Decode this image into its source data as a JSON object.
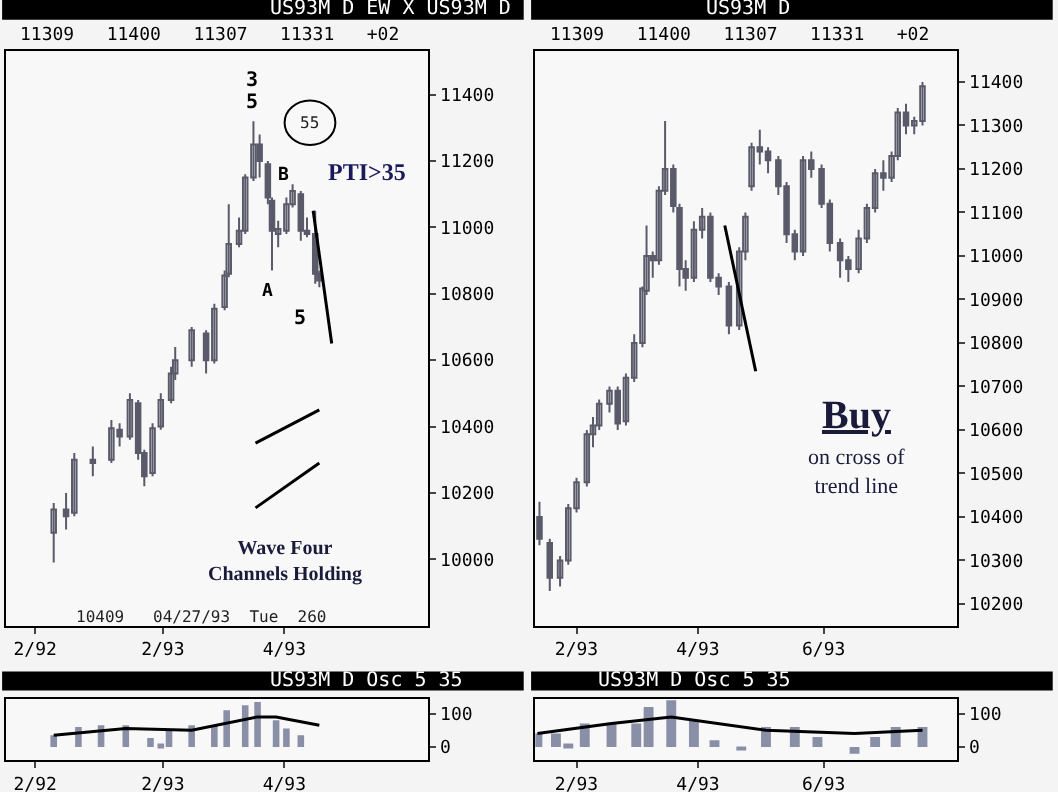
{
  "chart_data": [
    {
      "type": "candlestick",
      "title": "US93M D EW X US93M D",
      "subtitle": "11309   11400   11307   11331   +02",
      "color": "#5a5a6a",
      "x": [
        "1992-12-10",
        "1992-12-16",
        "1992-12-20",
        "1992-12-29",
        "1993-01-07",
        "1993-01-11",
        "1993-01-16",
        "1993-01-20",
        "1993-01-23",
        "1993-01-27",
        "1993-01-31",
        "1993-02-05",
        "1993-02-07",
        "1993-02-15",
        "1993-02-22",
        "1993-02-26",
        "1993-03-03",
        "1993-03-05",
        "1993-03-10",
        "1993-03-13",
        "1993-03-17",
        "1993-03-20",
        "1993-03-24",
        "1993-03-26",
        "1993-03-29",
        "1993-04-02",
        "1993-04-05",
        "1993-04-09",
        "1993-04-12",
        "1993-04-16",
        "1993-04-18"
      ],
      "ohlc": [
        [
          10080,
          10170,
          9990,
          10150
        ],
        [
          10150,
          10200,
          10090,
          10130
        ],
        [
          10140,
          10320,
          10130,
          10300
        ],
        [
          10300,
          10340,
          10250,
          10290
        ],
        [
          10300,
          10420,
          10290,
          10395
        ],
        [
          10390,
          10410,
          10340,
          10370
        ],
        [
          10370,
          10500,
          10360,
          10480
        ],
        [
          10470,
          10480,
          10300,
          10320
        ],
        [
          10320,
          10330,
          10220,
          10250
        ],
        [
          10260,
          10410,
          10250,
          10395
        ],
        [
          10400,
          10500,
          10390,
          10480
        ],
        [
          10480,
          10580,
          10470,
          10560
        ],
        [
          10560,
          10640,
          10540,
          10600
        ],
        [
          10600,
          10700,
          10580,
          10690
        ],
        [
          10680,
          10690,
          10560,
          10600
        ],
        [
          10600,
          10770,
          10590,
          10755
        ],
        [
          10760,
          10870,
          10750,
          10855
        ],
        [
          10860,
          11070,
          10850,
          10950
        ],
        [
          10950,
          11030,
          10940,
          10990
        ],
        [
          10990,
          11160,
          10980,
          11150
        ],
        [
          11150,
          11320,
          11140,
          11250
        ],
        [
          11250,
          11280,
          11150,
          11200
        ],
        [
          11190,
          11200,
          11070,
          11090
        ],
        [
          11080,
          11090,
          10870,
          10990
        ],
        [
          10980,
          11020,
          10940,
          10995
        ],
        [
          10990,
          11090,
          10980,
          11070
        ],
        [
          11070,
          11130,
          11060,
          11110
        ],
        [
          11100,
          11110,
          10960,
          10990
        ],
        [
          10990,
          11030,
          10970,
          10980
        ],
        [
          10980,
          11050,
          10830,
          10860
        ],
        [
          10860,
          10870,
          10820,
          10840
        ]
      ],
      "series": [
        {
          "type": "line",
          "color": "#000000",
          "x": [
            "1993-04-15",
            "1993-04-24"
          ],
          "values": [
            11050,
            10650
          ]
        },
        {
          "type": "line",
          "color": "#000000",
          "x": [
            "1993-03-18",
            "1993-04-18"
          ],
          "values": [
            10350,
            10450
          ]
        },
        {
          "type": "line",
          "color": "#000000",
          "x": [
            "1993-03-18",
            "1993-04-18"
          ],
          "values": [
            10155,
            10290
          ]
        }
      ],
      "xlim": [
        "1992-11-17",
        "1993-06-10"
      ],
      "xticks": [
        {
          "value": "1992-12-01",
          "label": "2/92"
        },
        {
          "value": "1993-02-01",
          "label": "2/93"
        },
        {
          "value": "1993-04-01",
          "label": "4/93"
        }
      ],
      "ylim": [
        9800,
        11530
      ],
      "yticks": [
        10000,
        10200,
        10400,
        10600,
        10800,
        11000,
        11200,
        11400
      ],
      "annotations": [
        "3",
        "5",
        "B",
        "A",
        "5",
        "55",
        "PTI>35",
        "Wave Four\nChannels Holding",
        "10409   04/27/93  Tue  260"
      ]
    },
    {
      "type": "candlestick",
      "title": "US93M D",
      "subtitle": "11309   11400   11307   11331   +02",
      "color": "#5a5a6a",
      "x": [
        "1993-01-14",
        "1993-01-19",
        "1993-01-24",
        "1993-01-28",
        "1993-02-01",
        "1993-02-06",
        "1993-02-09",
        "1993-02-12",
        "1993-02-17",
        "1993-02-21",
        "1993-02-25",
        "1993-03-01",
        "1993-03-05",
        "1993-03-07",
        "1993-03-10",
        "1993-03-13",
        "1993-03-16",
        "1993-03-20",
        "1993-03-23",
        "1993-03-26",
        "1993-03-30",
        "1993-04-03",
        "1993-04-07",
        "1993-04-11",
        "1993-04-16",
        "1993-04-21",
        "1993-04-24",
        "1993-04-27",
        "1993-05-01",
        "1993-05-05",
        "1993-05-10",
        "1993-05-14",
        "1993-05-18",
        "1993-05-22",
        "1993-05-26",
        "1993-05-31",
        "1993-06-04",
        "1993-06-09",
        "1993-06-13",
        "1993-06-18",
        "1993-06-22",
        "1993-06-26",
        "1993-06-30",
        "1993-07-04",
        "1993-07-07",
        "1993-07-11",
        "1993-07-15",
        "1993-07-19"
      ],
      "ohlc": [
        [
          10400,
          10435,
          10335,
          10350
        ],
        [
          10340,
          10350,
          10230,
          10260
        ],
        [
          10260,
          10310,
          10240,
          10300
        ],
        [
          10300,
          10430,
          10290,
          10420
        ],
        [
          10420,
          10490,
          10410,
          10480
        ],
        [
          10480,
          10600,
          10470,
          10590
        ],
        [
          10590,
          10630,
          10560,
          10610
        ],
        [
          10610,
          10670,
          10600,
          10660
        ],
        [
          10660,
          10700,
          10640,
          10690
        ],
        [
          10690,
          10700,
          10600,
          10615
        ],
        [
          10620,
          10730,
          10610,
          10720
        ],
        [
          10720,
          10820,
          10710,
          10800
        ],
        [
          10800,
          10930,
          10790,
          10925
        ],
        [
          10920,
          11070,
          10910,
          11000
        ],
        [
          11000,
          11010,
          10950,
          10990
        ],
        [
          10990,
          11160,
          10980,
          11150
        ],
        [
          11150,
          11310,
          11140,
          11200
        ],
        [
          11200,
          11210,
          11100,
          11115
        ],
        [
          11110,
          11120,
          10930,
          10970
        ],
        [
          10970,
          10990,
          10920,
          10950
        ],
        [
          10950,
          11080,
          10940,
          11060
        ],
        [
          11060,
          11110,
          11040,
          11090
        ],
        [
          11090,
          11100,
          10940,
          10950
        ],
        [
          10950,
          10960,
          10910,
          10930
        ],
        [
          10930,
          10940,
          10820,
          10840
        ],
        [
          10840,
          11020,
          10830,
          11010
        ],
        [
          11010,
          11100,
          10990,
          11090
        ],
        [
          11160,
          11260,
          11150,
          11250
        ],
        [
          11250,
          11290,
          11210,
          11240
        ],
        [
          11240,
          11250,
          11190,
          11220
        ],
        [
          11220,
          11230,
          11140,
          11160
        ],
        [
          11160,
          11170,
          11030,
          11050
        ],
        [
          11050,
          11060,
          10990,
          11010
        ],
        [
          11010,
          11230,
          11000,
          11220
        ],
        [
          11220,
          11240,
          11180,
          11200
        ],
        [
          11200,
          11210,
          11110,
          11120
        ],
        [
          11120,
          11130,
          11010,
          11030
        ],
        [
          11030,
          11040,
          10950,
          10990
        ],
        [
          10990,
          11000,
          10940,
          10970
        ],
        [
          10970,
          11060,
          10960,
          11040
        ],
        [
          11040,
          11120,
          11030,
          11110
        ],
        [
          11110,
          11200,
          11100,
          11190
        ],
        [
          11190,
          11220,
          11150,
          11180
        ],
        [
          11180,
          11240,
          11170,
          11230
        ],
        [
          11230,
          11340,
          11220,
          11330
        ],
        [
          11330,
          11350,
          11280,
          11300
        ],
        [
          11300,
          11320,
          11280,
          11310
        ],
        [
          11310,
          11400,
          11300,
          11390
        ]
      ],
      "series": [
        {
          "type": "line",
          "color": "#000000",
          "x": [
            "1993-04-14",
            "1993-04-29"
          ],
          "values": [
            11070,
            10735
          ]
        }
      ],
      "xlim": [
        "1993-01-12",
        "1993-08-05"
      ],
      "xticks": [
        {
          "value": "1993-02-01",
          "label": "2/93"
        },
        {
          "value": "1993-04-01",
          "label": "4/93"
        },
        {
          "value": "1993-06-01",
          "label": "6/93"
        }
      ],
      "ylim": [
        10150,
        11470
      ],
      "yticks": [
        10200,
        10300,
        10400,
        10500,
        10600,
        10700,
        10800,
        10900,
        11000,
        11100,
        11200,
        11300,
        11400
      ],
      "annotations": [
        "Buy",
        "on cross of\ntrend line"
      ]
    },
    {
      "type": "bar",
      "title": "US93M D Osc 5 35",
      "series": [
        {
          "type": "bar",
          "color": "#8a8fa8",
          "x": [
            "1992-12-10",
            "1992-12-22",
            "1993-01-02",
            "1993-01-14",
            "1993-01-26",
            "1993-01-31",
            "1993-02-04",
            "1993-02-15",
            "1993-02-26",
            "1993-03-04",
            "1993-03-13",
            "1993-03-19",
            "1993-03-28",
            "1993-04-02",
            "1993-04-09",
            "1993-04-15"
          ],
          "values": [
            35,
            60,
            65,
            65,
            27,
            10,
            50,
            65,
            65,
            110,
            125,
            135,
            80,
            55,
            35,
            0
          ]
        },
        {
          "type": "line",
          "color": "#000000",
          "x": [
            "1992-12-10",
            "1993-01-14",
            "1993-02-15",
            "1993-03-19",
            "1993-03-28",
            "1993-04-18"
          ],
          "values": [
            35,
            55,
            50,
            90,
            90,
            65
          ]
        }
      ],
      "xlim": [
        "1992-11-17",
        "1993-06-10"
      ],
      "xticks": [
        {
          "value": "1992-12-01",
          "label": "2/92"
        },
        {
          "value": "1993-02-01",
          "label": "2/93"
        },
        {
          "value": "1993-04-01",
          "label": "4/93"
        }
      ],
      "ylim": [
        -40,
        145
      ],
      "yticks": [
        0,
        100
      ]
    },
    {
      "type": "bar",
      "title": "US93M D Osc 5 35",
      "series": [
        {
          "type": "bar",
          "color": "#8a8fa8",
          "x": [
            "1993-01-13",
            "1993-01-22",
            "1993-01-28",
            "1993-02-05",
            "1993-02-18",
            "1993-03-02",
            "1993-03-08",
            "1993-03-19",
            "1993-03-30",
            "1993-04-09",
            "1993-04-22",
            "1993-05-04",
            "1993-05-18",
            "1993-05-29",
            "1993-06-16",
            "1993-06-26",
            "1993-07-06",
            "1993-07-19"
          ],
          "values": [
            40,
            40,
            10,
            70,
            70,
            70,
            120,
            140,
            80,
            20,
            -10,
            60,
            60,
            30,
            -20,
            30,
            60,
            60
          ]
        },
        {
          "type": "line",
          "color": "#000000",
          "x": [
            "1993-01-13",
            "1993-02-18",
            "1993-03-19",
            "1993-05-04",
            "1993-06-16",
            "1993-07-19"
          ],
          "values": [
            40,
            70,
            90,
            50,
            40,
            50
          ]
        }
      ],
      "xlim": [
        "1993-01-12",
        "1993-08-05"
      ],
      "xticks": [
        {
          "value": "1993-02-01",
          "label": "2/93"
        },
        {
          "value": "1993-04-01",
          "label": "4/93"
        },
        {
          "value": "1993-06-01",
          "label": "6/93"
        }
      ],
      "ylim": [
        -40,
        145
      ],
      "yticks": [
        0,
        100
      ]
    }
  ]
}
